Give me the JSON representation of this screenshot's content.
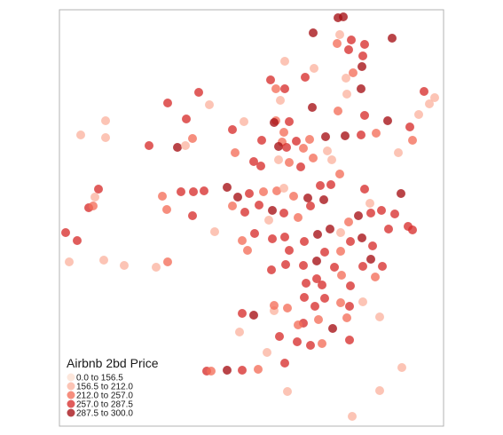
{
  "chart_data": {
    "type": "scatter",
    "legend": {
      "title": "Airbnb 2bd Price",
      "placement": "bottom-left",
      "classes": [
        {
          "label": "0.0 to 156.5",
          "color": "#fde0d2"
        },
        {
          "label": "156.5 to 212.0",
          "color": "#fbb4a0"
        },
        {
          "label": "212.0 to 257.0",
          "color": "#f46e5a"
        },
        {
          "label": "257.0 to 287.5",
          "color": "#d7302e"
        },
        {
          "label": "287.5 to 300.0",
          "color": "#a50f15"
        }
      ]
    },
    "grid": false,
    "point_opacity": 0.78,
    "points": [
      [
        381,
        20,
        4
      ],
      [
        387,
        19,
        4
      ],
      [
        353,
        37,
        4
      ],
      [
        383,
        39,
        1
      ],
      [
        380,
        49,
        2
      ],
      [
        396,
        45,
        3
      ],
      [
        411,
        50,
        3
      ],
      [
        442,
        43,
        4
      ],
      [
        393,
        56,
        3
      ],
      [
        409,
        63,
        3
      ],
      [
        408,
        75,
        4
      ],
      [
        398,
        82,
        2
      ],
      [
        321,
        69,
        1
      ],
      [
        354,
        77,
        1
      ],
      [
        305,
        90,
        3
      ],
      [
        311,
        100,
        2
      ],
      [
        321,
        100,
        3
      ],
      [
        344,
        87,
        3
      ],
      [
        390,
        88,
        1
      ],
      [
        407,
        100,
        4
      ],
      [
        391,
        106,
        1
      ],
      [
        316,
        113,
        1
      ],
      [
        224,
        104,
        3
      ],
      [
        189,
        116,
        3
      ],
      [
        236,
        118,
        1
      ],
      [
        478,
        103,
        3
      ],
      [
        490,
        110,
        1
      ],
      [
        484,
        117,
        1
      ],
      [
        472,
        129,
        1
      ],
      [
        119,
        136,
        1
      ],
      [
        275,
        137,
        1
      ],
      [
        311,
        136,
        2
      ],
      [
        326,
        137,
        3
      ],
      [
        352,
        121,
        4
      ],
      [
        381,
        125,
        2
      ],
      [
        411,
        130,
        3
      ],
      [
        437,
        136,
        4
      ],
      [
        462,
        143,
        3
      ],
      [
        210,
        134,
        3
      ],
      [
        262,
        146,
        3
      ],
      [
        309,
        138,
        4
      ],
      [
        320,
        149,
        2
      ],
      [
        91,
        152,
        1
      ],
      [
        119,
        155,
        1
      ],
      [
        168,
        164,
        3
      ],
      [
        200,
        166,
        4
      ],
      [
        217,
        156,
        2
      ],
      [
        209,
        164,
        1
      ],
      [
        295,
        158,
        3
      ],
      [
        318,
        160,
        2
      ],
      [
        334,
        159,
        3
      ],
      [
        349,
        157,
        2
      ],
      [
        367,
        154,
        4
      ],
      [
        389,
        153,
        4
      ],
      [
        407,
        152,
        3
      ],
      [
        424,
        150,
        2
      ],
      [
        465,
        158,
        2
      ],
      [
        314,
        165,
        4
      ],
      [
        323,
        166,
        3
      ],
      [
        342,
        167,
        2
      ],
      [
        369,
        170,
        1
      ],
      [
        449,
        172,
        1
      ],
      [
        265,
        172,
        2
      ],
      [
        286,
        182,
        3
      ],
      [
        294,
        187,
        3
      ],
      [
        314,
        180,
        1
      ],
      [
        326,
        183,
        2
      ],
      [
        339,
        188,
        3
      ],
      [
        353,
        178,
        2
      ],
      [
        374,
        180,
        1
      ],
      [
        111,
        213,
        3
      ],
      [
        107,
        222,
        1
      ],
      [
        100,
        234,
        3
      ],
      [
        105,
        232,
        2
      ],
      [
        183,
        221,
        2
      ],
      [
        204,
        216,
        3
      ],
      [
        218,
        216,
        3
      ],
      [
        230,
        215,
        3
      ],
      [
        256,
        211,
        4
      ],
      [
        268,
        222,
        4
      ],
      [
        281,
        218,
        3
      ],
      [
        297,
        216,
        2
      ],
      [
        312,
        215,
        2
      ],
      [
        320,
        212,
        1
      ],
      [
        188,
        236,
        2
      ],
      [
        217,
        243,
        3
      ],
      [
        242,
        261,
        1
      ],
      [
        262,
        232,
        2
      ],
      [
        276,
        239,
        3
      ],
      [
        292,
        231,
        3
      ],
      [
        307,
        237,
        4
      ],
      [
        331,
        221,
        2
      ],
      [
        347,
        223,
        4
      ],
      [
        361,
        209,
        3
      ],
      [
        373,
        208,
        3
      ],
      [
        383,
        196,
        2
      ],
      [
        411,
        213,
        3
      ],
      [
        417,
        229,
        1
      ],
      [
        74,
        262,
        3
      ],
      [
        87,
        271,
        3
      ],
      [
        78,
        295,
        1
      ],
      [
        117,
        293,
        1
      ],
      [
        140,
        299,
        1
      ],
      [
        176,
        301,
        1
      ],
      [
        189,
        295,
        2
      ],
      [
        273,
        271,
        2
      ],
      [
        287,
        263,
        3
      ],
      [
        303,
        248,
        1
      ],
      [
        320,
        240,
        3
      ],
      [
        336,
        245,
        2
      ],
      [
        350,
        232,
        3
      ],
      [
        365,
        225,
        4
      ],
      [
        279,
        282,
        2
      ],
      [
        307,
        269,
        3
      ],
      [
        321,
        267,
        3
      ],
      [
        326,
        282,
        3
      ],
      [
        343,
        272,
        3
      ],
      [
        358,
        264,
        4
      ],
      [
        372,
        258,
        4
      ],
      [
        384,
        262,
        1
      ],
      [
        393,
        250,
        2
      ],
      [
        404,
        243,
        4
      ],
      [
        418,
        240,
        3
      ],
      [
        430,
        237,
        3
      ],
      [
        445,
        241,
        3
      ],
      [
        452,
        218,
        4
      ],
      [
        306,
        304,
        3
      ],
      [
        322,
        298,
        3
      ],
      [
        342,
        299,
        3
      ],
      [
        357,
        294,
        4
      ],
      [
        366,
        284,
        3
      ],
      [
        384,
        283,
        2
      ],
      [
        395,
        272,
        3
      ],
      [
        408,
        268,
        4
      ],
      [
        420,
        277,
        3
      ],
      [
        438,
        258,
        3
      ],
      [
        460,
        255,
        3
      ],
      [
        465,
        259,
        3
      ],
      [
        431,
        300,
        3
      ],
      [
        418,
        292,
        4
      ],
      [
        345,
        319,
        3
      ],
      [
        357,
        314,
        3
      ],
      [
        363,
        321,
        3
      ],
      [
        377,
        301,
        3
      ],
      [
        385,
        310,
        2
      ],
      [
        395,
        322,
        3
      ],
      [
        409,
        300,
        3
      ],
      [
        423,
        312,
        2
      ],
      [
        394,
        345,
        3
      ],
      [
        366,
        336,
        3
      ],
      [
        343,
        335,
        3
      ],
      [
        355,
        345,
        3
      ],
      [
        309,
        350,
        1
      ],
      [
        324,
        347,
        2
      ],
      [
        273,
        353,
        3
      ],
      [
        286,
        355,
        4
      ],
      [
        309,
        344,
        2
      ],
      [
        342,
        364,
        3
      ],
      [
        359,
        360,
        2
      ],
      [
        384,
        341,
        2
      ],
      [
        409,
        340,
        1
      ],
      [
        428,
        357,
        1
      ],
      [
        270,
        374,
        1
      ],
      [
        315,
        379,
        3
      ],
      [
        335,
        385,
        3
      ],
      [
        350,
        389,
        3
      ],
      [
        363,
        387,
        2
      ],
      [
        394,
        383,
        3
      ],
      [
        233,
        418,
        3
      ],
      [
        238,
        418,
        2
      ],
      [
        256,
        417,
        4
      ],
      [
        273,
        417,
        3
      ],
      [
        291,
        416,
        2
      ],
      [
        321,
        409,
        3
      ],
      [
        324,
        441,
        1
      ],
      [
        397,
        469,
        1
      ],
      [
        428,
        440,
        1
      ],
      [
        453,
        414,
        1
      ],
      [
        301,
        397,
        1
      ],
      [
        336,
        366,
        2
      ],
      [
        375,
        370,
        4
      ],
      [
        391,
        358,
        2
      ]
    ]
  }
}
